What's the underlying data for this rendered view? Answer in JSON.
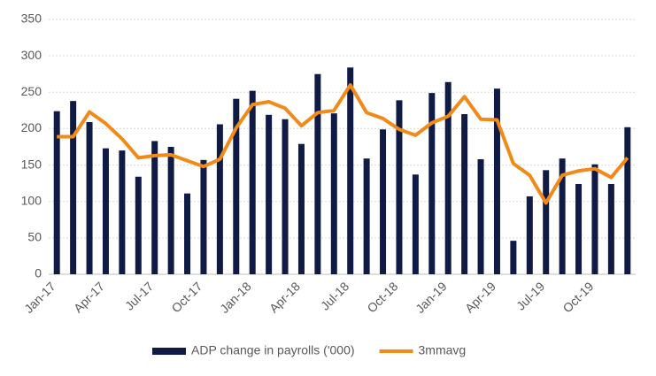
{
  "chart_data": {
    "type": "bar+line",
    "categories": [
      "Jan-17",
      null,
      null,
      "Apr-17",
      null,
      null,
      "Jul-17",
      null,
      null,
      "Oct-17",
      null,
      null,
      "Jan-18",
      null,
      null,
      "Apr-18",
      null,
      null,
      "Jul-18",
      null,
      null,
      "Oct-18",
      null,
      null,
      "Jan-19",
      null,
      null,
      "Apr-19",
      null,
      null,
      "Jul-19",
      null,
      null,
      "Oct-19",
      null,
      null
    ],
    "series": [
      {
        "name": "ADP change in payrolls ('000)",
        "type": "bar",
        "color": "#0f1b45",
        "values": [
          224,
          238,
          209,
          173,
          170,
          134,
          183,
          175,
          111,
          157,
          206,
          241,
          252,
          219,
          213,
          179,
          275,
          221,
          284,
          159,
          199,
          239,
          137,
          249,
          264,
          220,
          158,
          255,
          46,
          107,
          143,
          159,
          124,
          151,
          124,
          202
        ]
      },
      {
        "name": "3mmavg",
        "type": "line",
        "color": "#f28a1a",
        "values": [
          189,
          189,
          223,
          207,
          186,
          160,
          163,
          164,
          156,
          148,
          158,
          201,
          233,
          237,
          228,
          204,
          222,
          225,
          260,
          222,
          214,
          199,
          191,
          208,
          217,
          244,
          213,
          212,
          152,
          136,
          98,
          136,
          142,
          145,
          133,
          160
        ]
      }
    ],
    "ylim": [
      0,
      350
    ],
    "yticks": [
      0,
      50,
      100,
      150,
      200,
      250,
      300,
      350
    ],
    "grid": true,
    "legend": "bottom"
  }
}
